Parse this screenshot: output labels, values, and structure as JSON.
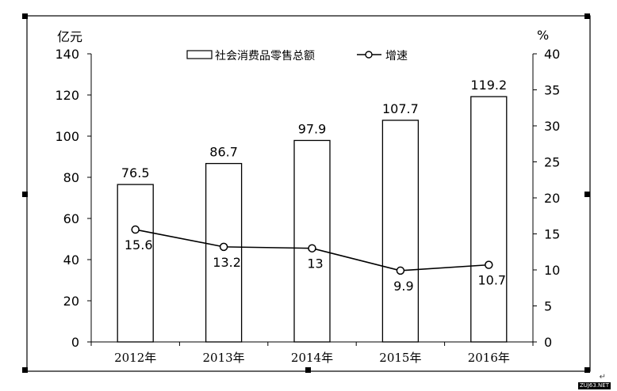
{
  "chart_data": {
    "type": "bar",
    "categories": [
      "2012年",
      "2013年",
      "2014年",
      "2015年",
      "2016年"
    ],
    "series": [
      {
        "name": "社会消费品零售总额",
        "type": "bar",
        "axis": "left",
        "values": [
          76.5,
          86.7,
          97.9,
          107.7,
          119.2
        ],
        "labels": [
          "76.5",
          "86.7",
          "97.9",
          "107.7",
          "119.2"
        ]
      },
      {
        "name": "增速",
        "type": "line",
        "axis": "right",
        "values": [
          15.6,
          13.2,
          13,
          9.9,
          10.7
        ],
        "labels": [
          "15.6",
          "13.2",
          "13",
          "9.9",
          "10.7"
        ]
      }
    ],
    "ylabel_left": "亿元",
    "ylabel_right": "%",
    "ylim_left": [
      0,
      140
    ],
    "ylim_right": [
      0,
      40
    ],
    "yticks_left": [
      0,
      20,
      40,
      60,
      80,
      100,
      120,
      140
    ],
    "yticks_right": [
      0,
      5,
      10,
      15,
      20,
      25,
      30,
      35,
      40
    ],
    "grid": false,
    "legend_position": "top-center"
  },
  "watermark": "ZUJ63.NET",
  "return_mark": "↵"
}
